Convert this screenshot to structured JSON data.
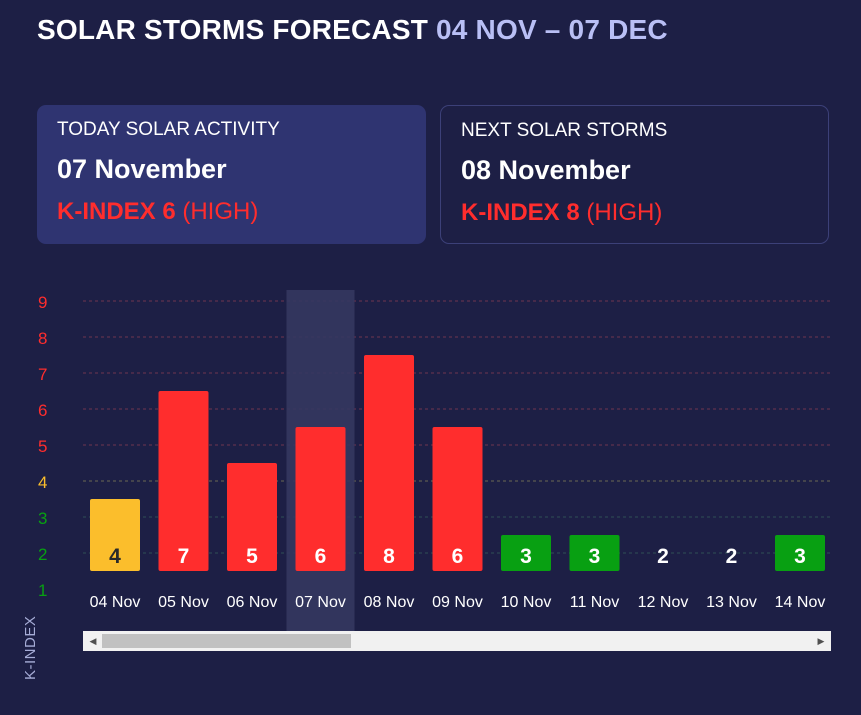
{
  "header": {
    "title": "SOLAR STORMS FORECAST",
    "range": "04 NOV – 07 DEC"
  },
  "cards": {
    "today": {
      "label": "TODAY SOLAR ACTIVITY",
      "date": "07 November",
      "kindex": "K-INDEX 6",
      "level": "(HIGH)"
    },
    "next": {
      "label": "NEXT SOLAR STORMS",
      "date": "08 November",
      "kindex": "K-INDEX 8",
      "level": "(HIGH)"
    }
  },
  "colors": {
    "background": "#1d1f45",
    "low": "#08a012",
    "medium": "#fbbe2c",
    "high": "#ff2d2d",
    "highlight": "#35375f"
  },
  "chart_data": {
    "type": "bar",
    "title": "SOLAR STORMS FORECAST",
    "xlabel": "",
    "ylabel": "K-INDEX",
    "ylim": [
      1,
      9
    ],
    "yticks": [
      1,
      2,
      3,
      4,
      5,
      6,
      7,
      8,
      9
    ],
    "categories": [
      "04 Nov",
      "05 Nov",
      "06 Nov",
      "07 Nov",
      "08 Nov",
      "09 Nov",
      "10 Nov",
      "11 Nov",
      "12 Nov",
      "13 Nov",
      "14 Nov"
    ],
    "values": [
      4,
      7,
      5,
      6,
      8,
      6,
      3,
      3,
      2,
      2,
      3
    ],
    "highlighted_category": "07 Nov",
    "grid": true,
    "legend": "none"
  },
  "scrollbar": {
    "left_arrow": "◀",
    "right_arrow": "▶",
    "position_fraction": 0.0,
    "visible_fraction": 0.33
  }
}
